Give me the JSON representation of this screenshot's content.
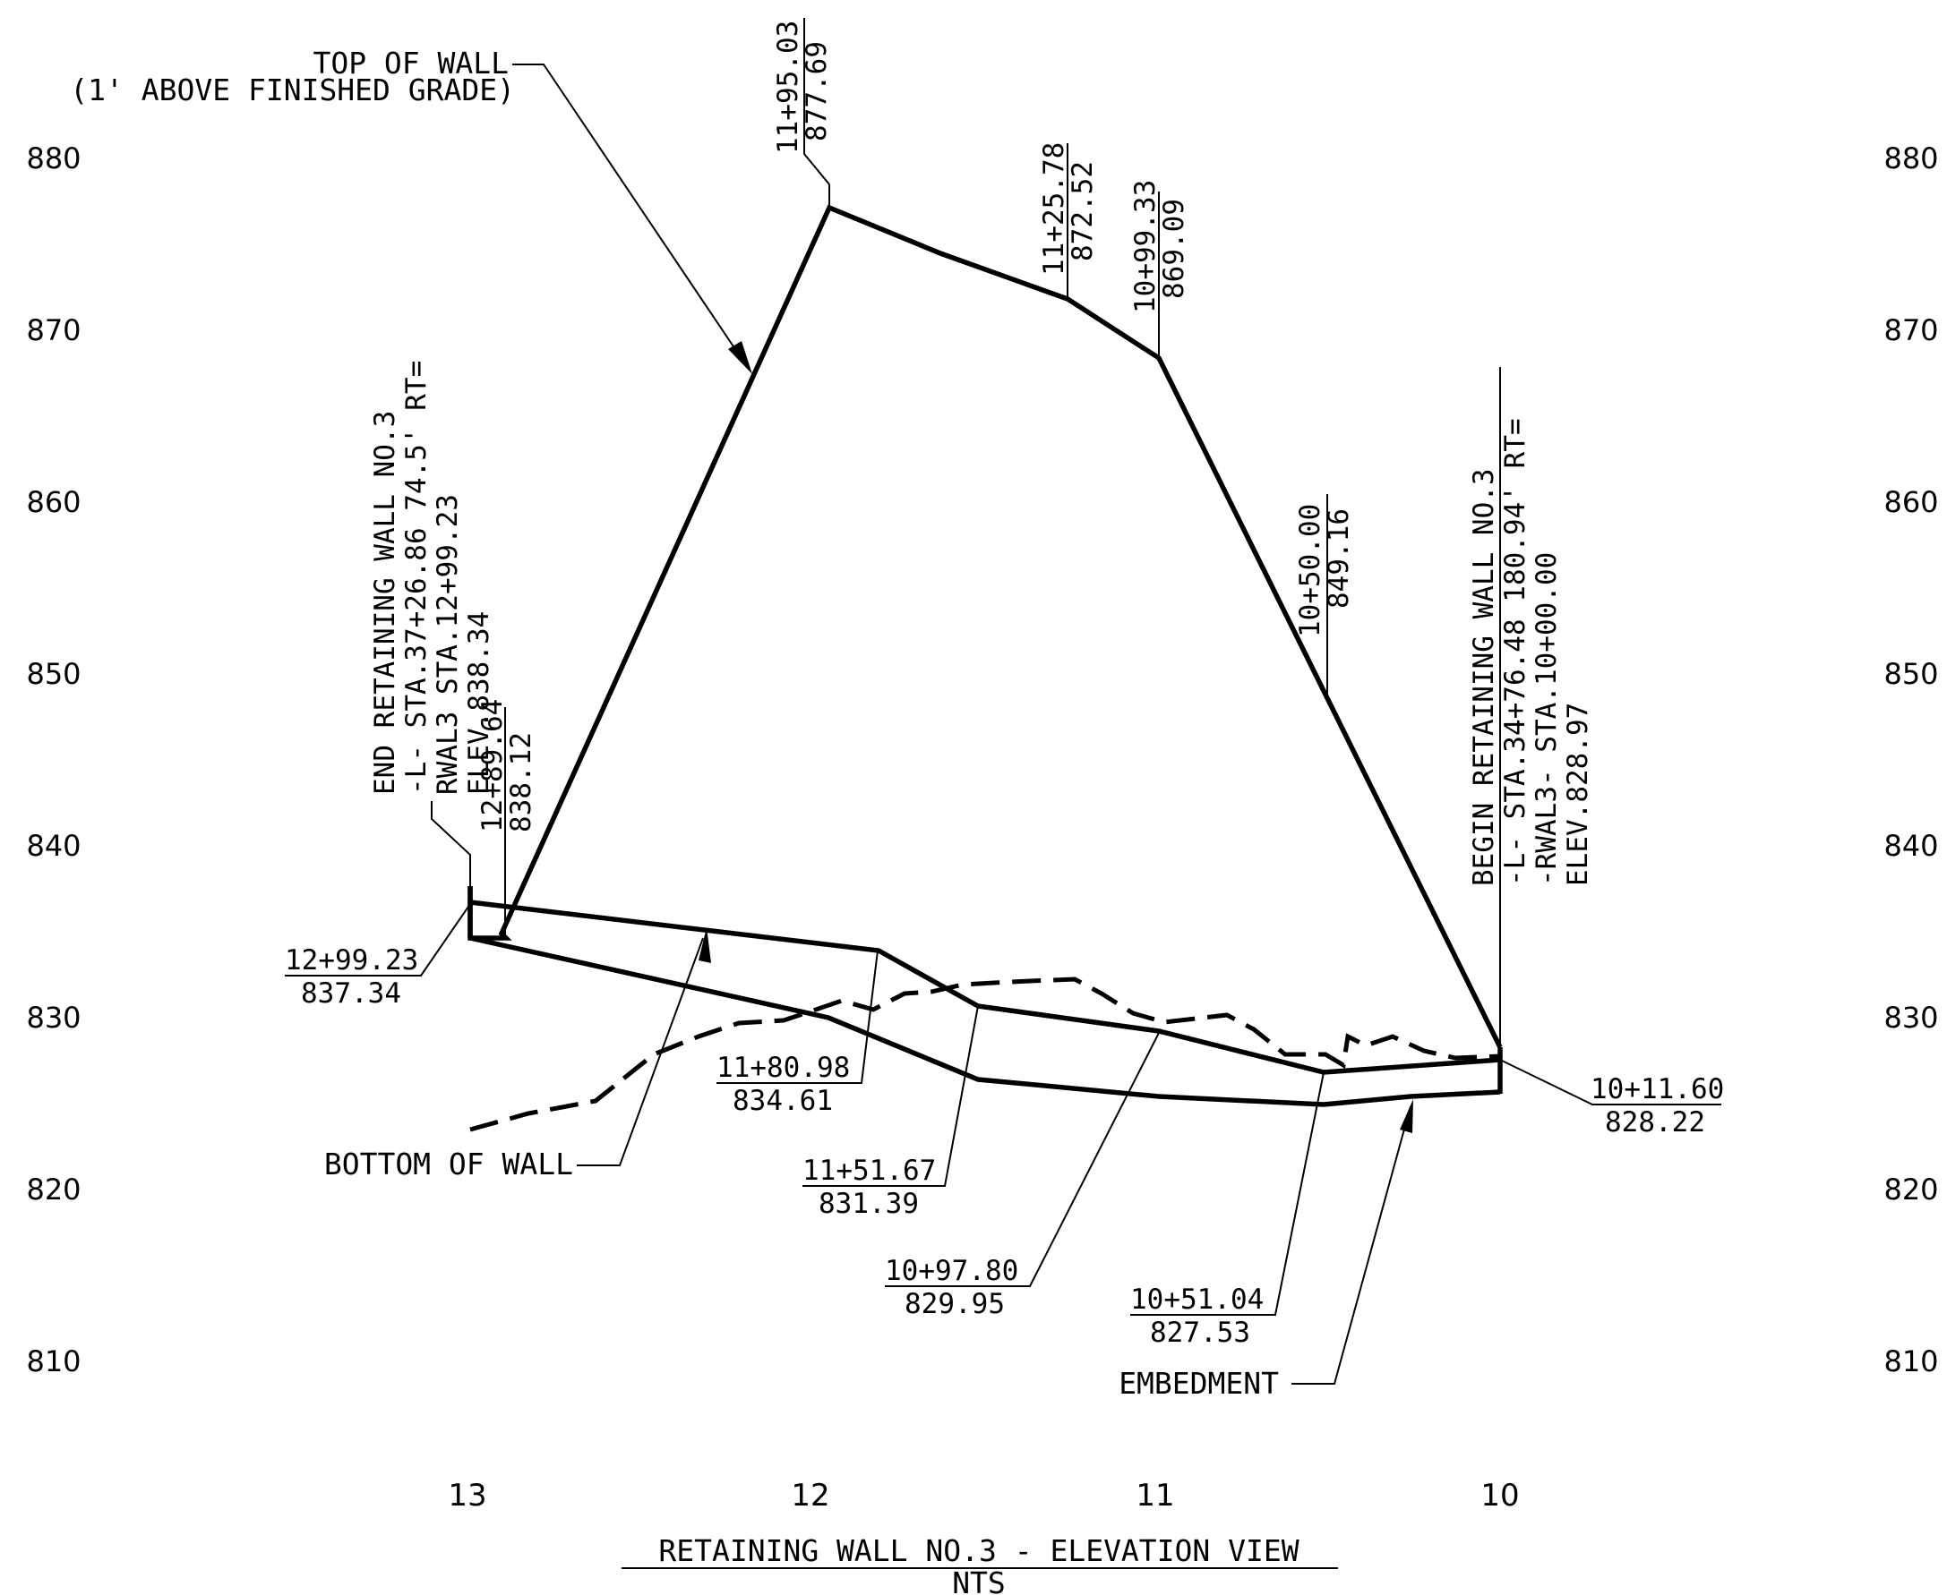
{
  "axes": {
    "y_ticks": [
      "880",
      "870",
      "860",
      "850",
      "840",
      "830",
      "820",
      "810"
    ],
    "x_ticks": [
      "13",
      "12",
      "11",
      "10"
    ]
  },
  "title": {
    "main": "RETAINING WALL NO.3 - ELEVATION VIEW",
    "scale": "NTS"
  },
  "labels": {
    "top_of_wall": "TOP OF WALL",
    "top_of_wall_note": "(1' ABOVE FINISHED GRADE)",
    "bottom_of_wall": "BOTTOM OF WALL",
    "embedment": "EMBEDMENT"
  },
  "end_note": {
    "line1": "END RETAINING WALL NO.3",
    "line2": "-L- STA.37+26.86 74.5' RT=",
    "line3": "RWAL3 STA.12+99.23",
    "line4": "ELEV.838.34"
  },
  "begin_note": {
    "line1": "BEGIN RETAINING WALL NO.3",
    "line2": "-L- STA.34+76.48 180.94' RT=",
    "line3": "-RWAL3- STA.10+00.00",
    "line4": "ELEV.828.97"
  },
  "top_callouts": [
    {
      "sta": "12+89.64",
      "elev": "838.12"
    },
    {
      "sta": "11+95.03",
      "elev": "877.69"
    },
    {
      "sta": "11+25.78",
      "elev": "872.52"
    },
    {
      "sta": "10+99.33",
      "elev": "869.09"
    },
    {
      "sta": "10+50.00",
      "elev": "849.16"
    }
  ],
  "bottom_callouts": [
    {
      "sta": "12+99.23",
      "elev": "837.34"
    },
    {
      "sta": "11+80.98",
      "elev": "834.61"
    },
    {
      "sta": "11+51.67",
      "elev": "831.39"
    },
    {
      "sta": "10+97.80",
      "elev": "829.95"
    },
    {
      "sta": "10+51.04",
      "elev": "827.53"
    },
    {
      "sta": "10+11.60",
      "elev": "828.22"
    }
  ]
}
